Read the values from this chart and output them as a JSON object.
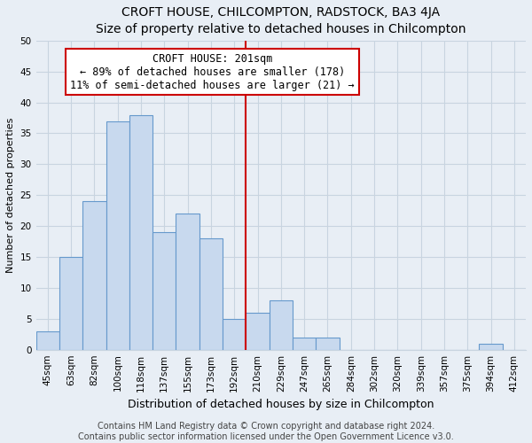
{
  "title": "CROFT HOUSE, CHILCOMPTON, RADSTOCK, BA3 4JA",
  "subtitle": "Size of property relative to detached houses in Chilcompton",
  "xlabel": "Distribution of detached houses by size in Chilcompton",
  "ylabel": "Number of detached properties",
  "bar_labels": [
    "45sqm",
    "63sqm",
    "82sqm",
    "100sqm",
    "118sqm",
    "137sqm",
    "155sqm",
    "173sqm",
    "192sqm",
    "210sqm",
    "229sqm",
    "247sqm",
    "265sqm",
    "284sqm",
    "302sqm",
    "320sqm",
    "339sqm",
    "357sqm",
    "375sqm",
    "394sqm",
    "412sqm"
  ],
  "bar_values": [
    3,
    15,
    24,
    37,
    38,
    19,
    22,
    18,
    5,
    6,
    8,
    2,
    2,
    0,
    0,
    0,
    0,
    0,
    0,
    1,
    0
  ],
  "bar_color": "#c8d9ee",
  "bar_edge_color": "#6699cc",
  "vline_x_index": 8.5,
  "vline_color": "#cc0000",
  "annotation_title": "CROFT HOUSE: 201sqm",
  "annotation_line1": "← 89% of detached houses are smaller (178)",
  "annotation_line2": "11% of semi-detached houses are larger (21) →",
  "annotation_box_facecolor": "#ffffff",
  "annotation_box_edgecolor": "#cc0000",
  "ylim": [
    0,
    50
  ],
  "yticks": [
    0,
    5,
    10,
    15,
    20,
    25,
    30,
    35,
    40,
    45,
    50
  ],
  "footer_line1": "Contains HM Land Registry data © Crown copyright and database right 2024.",
  "footer_line2": "Contains public sector information licensed under the Open Government Licence v3.0.",
  "bg_color": "#e8eef5",
  "grid_color": "#c8d4e0",
  "title_fontsize": 10,
  "xlabel_fontsize": 9,
  "ylabel_fontsize": 8,
  "footer_fontsize": 7,
  "tick_fontsize": 7.5,
  "annot_fontsize": 8.5
}
